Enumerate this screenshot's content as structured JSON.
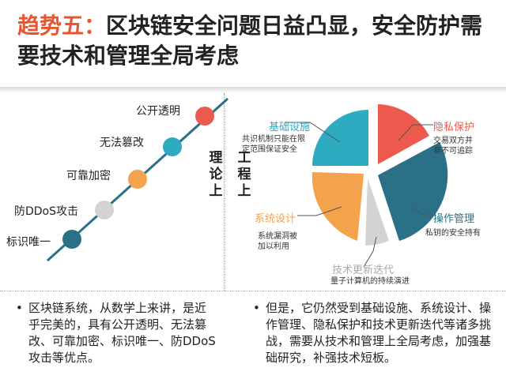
{
  "title": {
    "accent": "趋势五：",
    "text": "区块链安全问题日益凸显，安全防护需要技术和管理全局考虑"
  },
  "left": {
    "vertical_label": "理论上",
    "points": [
      {
        "label": "公开透明",
        "color": "#ec5a4e"
      },
      {
        "label": "无法篡改",
        "color": "#2eaac1"
      },
      {
        "label": "可靠加密",
        "color": "#f4a24b"
      },
      {
        "label": "防DDoS攻击",
        "color": "#d3d3d3"
      },
      {
        "label": "标识唯一",
        "color": "#2a7187"
      }
    ]
  },
  "right": {
    "vertical_label": "工程上",
    "segments": [
      {
        "label": "基础设施",
        "desc": [
          "共识机制只能在限",
          "定范围保证安全"
        ],
        "color": "#2eaac1"
      },
      {
        "label": "隐私保护",
        "desc": [
          "交易双方并",
          "非不可追踪"
        ],
        "color": "#ec5a4e"
      },
      {
        "label": "操作管理",
        "desc": [
          "私钥的安全持有"
        ],
        "color": "#2a7187"
      },
      {
        "label": "技术更新迭代",
        "desc": [
          "量子计算机的持续演进"
        ],
        "color": "#d3d3d3"
      },
      {
        "label": "系统设计",
        "desc": [
          "系统漏洞被",
          "加以利用"
        ],
        "color": "#f4a24b"
      }
    ]
  },
  "bullets": {
    "left": "区块链系统，从数学上来讲，是近乎完美的，具有公开透明、无法篡改、可靠加密、标识唯一、防DDoS攻击等优点。",
    "right": "但是，它仍然受到基础设施、系统设计、操作管理、隐私保护和技术更新迭代等诸多挑战，需要从技术和管理上全局考虑，加强基础研究，补强技术短板。",
    "marker": "•"
  }
}
